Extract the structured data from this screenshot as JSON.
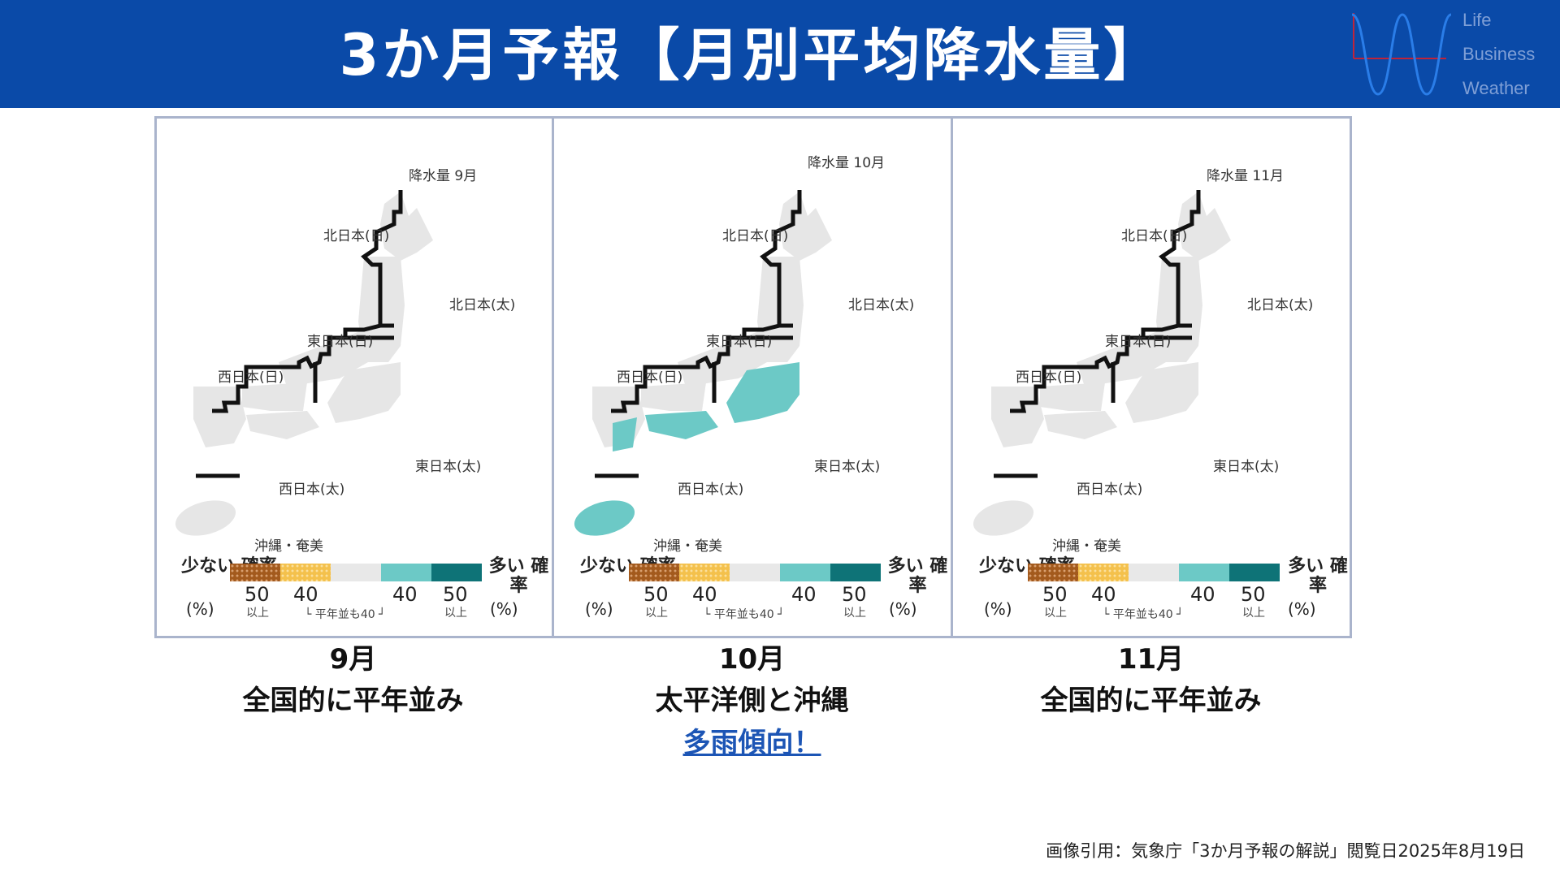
{
  "header": {
    "title": "3か月予報【月別平均降水量】",
    "logo": {
      "words": [
        "Life",
        "Business",
        "Weather"
      ]
    },
    "bg_color": "#0a4aa8"
  },
  "legend": {
    "dry_label": "少ない 確率",
    "wet_label": "多い 確率",
    "pct": "(%)",
    "n50": "50",
    "n40": "40",
    "above": "以上",
    "normal_note": "└ 平年並も40 ┘"
  },
  "region_labels": {
    "north_sea": "北日本(日)",
    "north_pacific": "北日本(太)",
    "east_sea": "東日本(日)",
    "west_sea": "西日本(日)",
    "east_pacific": "東日本(太)",
    "west_pacific": "西日本(太)",
    "okinawa": "沖縄・奄美"
  },
  "panels": [
    {
      "map_title": "降水量 9月",
      "month": "9月",
      "desc": "全国的に平年並み",
      "emph": "",
      "wet": false
    },
    {
      "map_title": "降水量 10月",
      "month": "10月",
      "desc": "太平洋側と沖縄",
      "emph": "多雨傾向！",
      "wet": true
    },
    {
      "map_title": "降水量 11月",
      "month": "11月",
      "desc": "全国的に平年並み",
      "emph": "",
      "wet": false
    }
  ],
  "colors": {
    "land": "#e6e6e6",
    "wet_above": "#6cc9c6",
    "frame": "#aab4cc",
    "emphasis": "#1c55b5"
  },
  "source": "画像引用：気象庁「3か月予報の解説」閲覧日2025年8月19日"
}
